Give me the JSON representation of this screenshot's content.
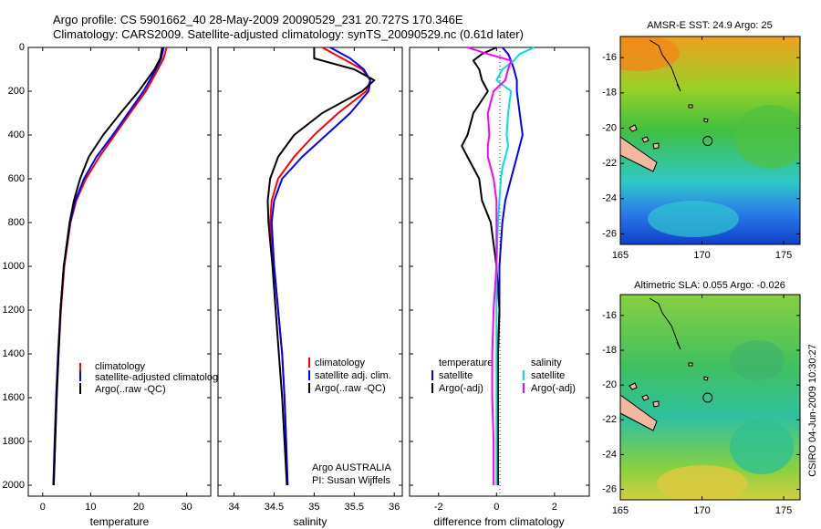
{
  "title_lines": [
    "Argo profile: CS 5901662_40 28-May-2009 20090529_231 20.727S 170.346E",
    "Climatology: CARS2009. Satellite-adjusted climatology: synTS_20090529.nc (0.61d later)"
  ],
  "footer_stamp": "CSIRO 04-Jun-2009 10:30:27",
  "colors": {
    "climatology": "#ff0000",
    "satellite": "#0000ff",
    "argo": "#000000",
    "salinity_satellite": "#00e0e0",
    "salinity_argo": "#ff00ff",
    "land": "#f4b8a0"
  },
  "chart_data": [
    {
      "type": "line",
      "xlabel": "temperature",
      "xlim": [
        -3,
        35
      ],
      "ylim": [
        2050,
        0
      ],
      "xticks": [
        0,
        10,
        20,
        30
      ],
      "yticks": [
        0,
        200,
        400,
        600,
        800,
        1000,
        1200,
        1400,
        1600,
        1800,
        2000
      ],
      "depth": [
        0,
        50,
        100,
        200,
        300,
        400,
        500,
        600,
        700,
        800,
        1000,
        1200,
        1400,
        1600,
        1800,
        2000
      ],
      "legend": [
        "climatology",
        "satellite-adjusted climatology",
        "Argo(..raw -QC)"
      ],
      "series": [
        {
          "name": "climatology",
          "values": [
            25.8,
            25.2,
            24.0,
            21.5,
            18.2,
            15.0,
            11.8,
            9.0,
            7.0,
            5.8,
            4.5,
            3.8,
            3.3,
            2.9,
            2.6,
            2.3
          ]
        },
        {
          "name": "satellite-adjusted climatology",
          "values": [
            25.2,
            24.7,
            23.6,
            21.0,
            17.8,
            14.6,
            11.2,
            8.6,
            6.8,
            5.7,
            4.4,
            3.7,
            3.2,
            2.8,
            2.5,
            2.2
          ]
        },
        {
          "name": "Argo(..raw -QC)",
          "values": [
            24.9,
            24.5,
            23.3,
            20.0,
            16.2,
            12.6,
            9.6,
            7.8,
            6.5,
            5.6,
            4.4,
            3.7,
            3.3,
            2.9,
            2.6,
            2.3
          ]
        }
      ]
    },
    {
      "type": "line",
      "xlabel": "salinity",
      "xlim": [
        33.8,
        36.1
      ],
      "ylim": [
        2050,
        0
      ],
      "xticks": [
        34,
        34.5,
        35,
        35.5,
        36
      ],
      "depth": [
        0,
        50,
        100,
        150,
        200,
        300,
        400,
        500,
        600,
        700,
        800,
        1000,
        1200,
        1400,
        1600,
        1800,
        2000
      ],
      "legend": [
        "climatology",
        "satellite adj. clim.",
        "Argo(..raw -QC)"
      ],
      "series": [
        {
          "name": "climatology",
          "values": [
            35.1,
            35.35,
            35.6,
            35.7,
            35.65,
            35.3,
            35.0,
            34.75,
            34.55,
            34.47,
            34.45,
            34.5,
            34.55,
            34.6,
            34.63,
            34.65,
            34.66
          ]
        },
        {
          "name": "satellite adj. clim.",
          "values": [
            35.2,
            35.45,
            35.62,
            35.7,
            35.68,
            35.45,
            35.15,
            34.85,
            34.6,
            34.5,
            34.47,
            34.5,
            34.55,
            34.6,
            34.63,
            34.65,
            34.67
          ]
        },
        {
          "name": "Argo(..raw -QC)",
          "values": [
            35.0,
            35.0,
            35.5,
            35.75,
            35.6,
            35.1,
            34.75,
            34.55,
            34.45,
            34.42,
            34.43,
            34.48,
            34.52,
            34.56,
            34.6,
            34.63,
            34.66
          ]
        }
      ],
      "annotation": [
        "Argo AUSTRALIA",
        "PI: Susan Wijffels"
      ]
    },
    {
      "type": "line",
      "xlabel": "difference from climatology",
      "xlim": [
        -3,
        3.2
      ],
      "ylim": [
        2050,
        0
      ],
      "xticks": [
        -2,
        0,
        2
      ],
      "depth": [
        0,
        30,
        60,
        100,
        150,
        200,
        300,
        400,
        450,
        500,
        550,
        600,
        700,
        800,
        1000,
        1200,
        1400,
        1600,
        1800,
        2000
      ],
      "legend_left": [
        "temperature",
        "satellite",
        "Argo(-adj)"
      ],
      "legend_right": [
        "salinity",
        "satellite",
        "Argo(-adj)"
      ],
      "series": [
        {
          "name": "temperature satellite",
          "values": [
            0.2,
            0.4,
            0.5,
            0.6,
            0.7,
            0.7,
            0.8,
            0.9,
            0.8,
            0.7,
            0.6,
            0.5,
            0.3,
            0.2,
            0.1,
            0.1,
            0.05,
            0.05,
            0.05,
            0.05
          ]
        },
        {
          "name": "temperature Argo(-adj)",
          "values": [
            0.0,
            -0.5,
            -0.8,
            -0.6,
            -0.5,
            -0.3,
            -0.8,
            -1.0,
            -1.2,
            -1.0,
            -0.8,
            -0.6,
            -0.5,
            -0.2,
            0.0,
            0.1,
            0.05,
            0.05,
            0.05,
            0.05
          ]
        },
        {
          "name": "salinity satellite",
          "values": [
            1.3,
            0.8,
            0.6,
            0.2,
            0.0,
            0.5,
            0.4,
            0.35,
            0.4,
            0.3,
            0.2,
            0.15,
            0.1,
            0.05,
            0.0,
            0.0,
            0.0,
            0.0,
            0.0,
            0.0
          ]
        },
        {
          "name": "salinity Argo(-adj)",
          "values": [
            -1.0,
            -0.3,
            0.5,
            0.4,
            0.3,
            -0.1,
            -0.3,
            -0.25,
            -0.3,
            -0.3,
            -0.2,
            -0.1,
            0.0,
            0.0,
            0.0,
            -0.1,
            -0.15,
            -0.15,
            -0.1,
            -0.1
          ]
        }
      ]
    },
    {
      "type": "heatmap",
      "title": "AMSR-E SST: 24.9 Argo: 25",
      "xticks": [
        165,
        170,
        175
      ],
      "yticks": [
        -16,
        -18,
        -20,
        -22,
        -24,
        -26
      ],
      "xlim": [
        165,
        176
      ],
      "ylim": [
        -26.6,
        -14.8
      ],
      "argo_position": [
        170.346,
        -20.727
      ]
    },
    {
      "type": "heatmap",
      "title": "Altimetric SLA: 0.055 Argo: -0.026",
      "xticks": [
        165,
        170,
        175
      ],
      "yticks": [
        -16,
        -18,
        -20,
        -22,
        -24,
        -26
      ],
      "xlim": [
        165,
        176
      ],
      "ylim": [
        -26.6,
        -14.8
      ],
      "argo_position": [
        170.346,
        -20.727
      ]
    }
  ]
}
